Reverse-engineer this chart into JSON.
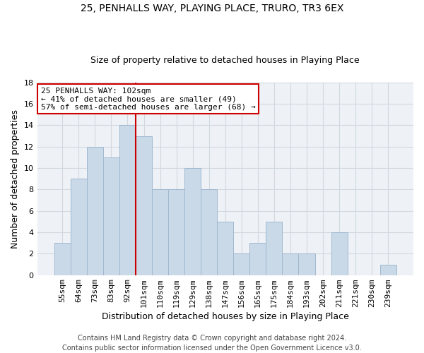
{
  "title1": "25, PENHALLS WAY, PLAYING PLACE, TRURO, TR3 6EX",
  "title2": "Size of property relative to detached houses in Playing Place",
  "xlabel": "Distribution of detached houses by size in Playing Place",
  "ylabel": "Number of detached properties",
  "bar_labels": [
    "55sqm",
    "64sqm",
    "73sqm",
    "83sqm",
    "92sqm",
    "101sqm",
    "110sqm",
    "119sqm",
    "129sqm",
    "138sqm",
    "147sqm",
    "156sqm",
    "165sqm",
    "175sqm",
    "184sqm",
    "193sqm",
    "202sqm",
    "211sqm",
    "221sqm",
    "230sqm",
    "239sqm"
  ],
  "bar_values": [
    3,
    9,
    12,
    11,
    14,
    13,
    8,
    8,
    10,
    8,
    5,
    2,
    3,
    5,
    2,
    2,
    0,
    4,
    0,
    0,
    1
  ],
  "bar_color": "#c9d9e8",
  "bar_edge_color": "#a0b8d0",
  "vline_color": "#cc0000",
  "annotation_text": "25 PENHALLS WAY: 102sqm\n← 41% of detached houses are smaller (49)\n57% of semi-detached houses are larger (68) →",
  "annotation_box_color": "#cc0000",
  "ylim": [
    0,
    18
  ],
  "yticks": [
    0,
    2,
    4,
    6,
    8,
    10,
    12,
    14,
    16,
    18
  ],
  "grid_color": "#d0d8e0",
  "background_color": "#eef2f7",
  "footer_line1": "Contains HM Land Registry data © Crown copyright and database right 2024.",
  "footer_line2": "Contains public sector information licensed under the Open Government Licence v3.0.",
  "title1_fontsize": 10,
  "title2_fontsize": 9,
  "xlabel_fontsize": 9,
  "ylabel_fontsize": 9,
  "tick_fontsize": 8,
  "annotation_fontsize": 8,
  "footer_fontsize": 7
}
